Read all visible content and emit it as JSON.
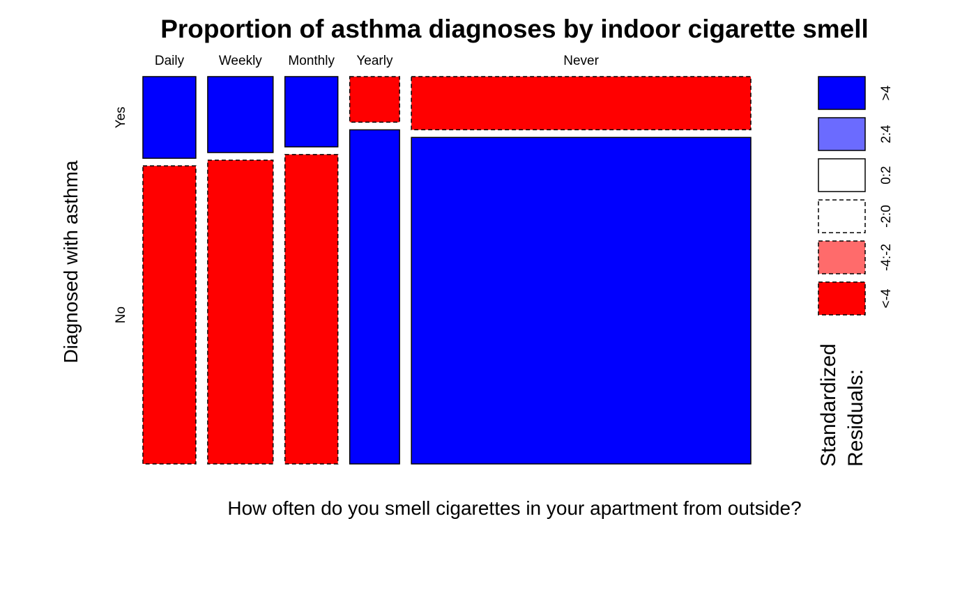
{
  "chart_data": {
    "type": "mosaic",
    "title": "Proportion of asthma diagnoses by indoor cigarette smell",
    "xlabel": "How often do you smell cigarettes in your apartment from outside?",
    "ylabel": "Diagnosed with asthma",
    "x_categories": [
      "Daily",
      "Weekly",
      "Monthly",
      "Yearly",
      "Never"
    ],
    "y_categories": [
      "Yes",
      "No"
    ],
    "column_widths": [
      0.085,
      0.105,
      0.085,
      0.08,
      0.545
    ],
    "yes_proportion": [
      0.215,
      0.2,
      0.185,
      0.12,
      0.14
    ],
    "residual_class": {
      "Yes": [
        ">4",
        ">4",
        ">4",
        "<-4",
        "<-4"
      ],
      "No": [
        "<-4",
        "<-4",
        "<-4",
        ">4",
        ">4"
      ]
    },
    "legend": {
      "title_lines": [
        "Standardized",
        "Residuals:"
      ],
      "items": [
        {
          "label": ">4",
          "color": "#0000ff",
          "dashed": false
        },
        {
          "label": "2:4",
          "color": "#6b6bff",
          "dashed": false
        },
        {
          "label": "0:2",
          "color": "#ffffff",
          "dashed": false
        },
        {
          "label": "-2:0",
          "color": "#ffffff",
          "dashed": true
        },
        {
          "label": "-4:-2",
          "color": "#ff6b6b",
          "dashed": true
        },
        {
          "label": "<-4",
          "color": "#ff0000",
          "dashed": true
        }
      ]
    }
  }
}
